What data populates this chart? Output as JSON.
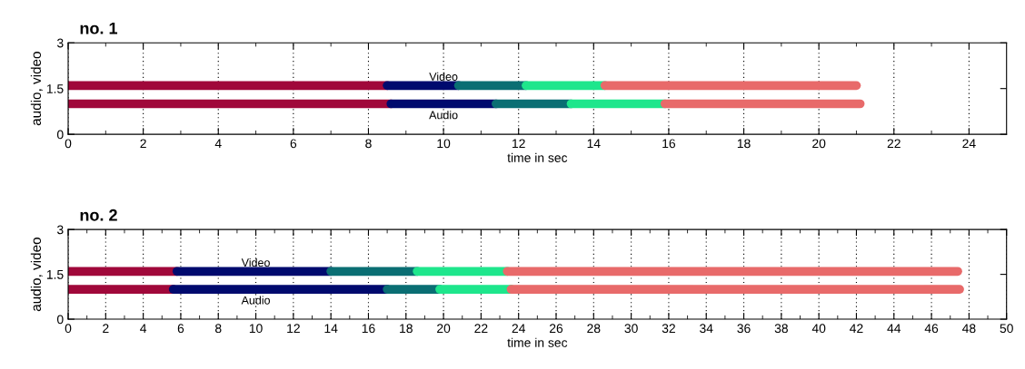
{
  "chart_data": [
    {
      "type": "line",
      "title": "no. 1",
      "xlabel": "time in sec",
      "ylabel": "audio, video",
      "xlim": [
        0,
        25
      ],
      "ylim": [
        0,
        3
      ],
      "xticks": [
        0,
        2,
        4,
        6,
        8,
        10,
        12,
        14,
        16,
        18,
        20,
        22,
        24,
        {
          "value": 1,
          "label": null
        },
        {
          "value": 3,
          "label": null
        },
        {
          "value": 5,
          "label": null
        },
        {
          "value": 7,
          "label": null
        },
        {
          "value": 9,
          "label": null
        },
        {
          "value": 11,
          "label": null
        },
        {
          "value": 13,
          "label": null
        },
        {
          "value": 15,
          "label": null
        },
        {
          "value": 17,
          "label": null
        },
        {
          "value": 19,
          "label": null
        },
        {
          "value": 21,
          "label": null
        },
        {
          "value": 23,
          "label": null
        }
      ],
      "yticks": [
        0,
        1.5,
        3
      ],
      "grid": "x",
      "marker": "none",
      "line_style": "solid",
      "annotations": [
        "Video",
        "Audio"
      ],
      "series": [
        {
          "color": "#a0083a",
          "x": [
            0,
            8.5
          ],
          "values": [
            1.6,
            1.6
          ]
        },
        {
          "color": "#000a6e",
          "x": [
            8.5,
            10.4
          ],
          "values": [
            1.6,
            1.6
          ]
        },
        {
          "color": "#0a6e73",
          "x": [
            10.4,
            12.2
          ],
          "values": [
            1.6,
            1.6
          ]
        },
        {
          "color": "#1ee68c",
          "x": [
            12.2,
            14.3
          ],
          "values": [
            1.6,
            1.6
          ]
        },
        {
          "color": "#e86a6a",
          "x": [
            14.3,
            21.0
          ],
          "values": [
            1.6,
            1.6
          ]
        },
        {
          "color": "#a0083a",
          "x": [
            0,
            8.6
          ],
          "values": [
            1.0,
            1.0
          ]
        },
        {
          "color": "#000a6e",
          "x": [
            8.6,
            11.4
          ],
          "values": [
            1.0,
            1.0
          ]
        },
        {
          "color": "#0a6e73",
          "x": [
            11.4,
            13.4
          ],
          "values": [
            1.0,
            1.0
          ]
        },
        {
          "color": "#1ee68c",
          "x": [
            13.4,
            15.9
          ],
          "values": [
            1.0,
            1.0
          ]
        },
        {
          "color": "#e86a6a",
          "x": [
            15.9,
            21.1
          ],
          "values": [
            1.0,
            1.0
          ]
        }
      ]
    },
    {
      "type": "line",
      "title": "no. 2",
      "xlabel": "time in sec",
      "ylabel": "audio, video",
      "xlim": [
        0,
        50
      ],
      "ylim": [
        0,
        3
      ],
      "xticks": [
        0,
        2,
        4,
        6,
        8,
        10,
        12,
        14,
        16,
        18,
        20,
        22,
        24,
        26,
        28,
        30,
        32,
        34,
        36,
        38,
        40,
        42,
        44,
        46,
        48,
        50,
        {
          "value": 1,
          "label": null
        },
        {
          "value": 3,
          "label": null
        },
        {
          "value": 5,
          "label": null
        },
        {
          "value": 7,
          "label": null
        },
        {
          "value": 9,
          "label": null
        },
        {
          "value": 11,
          "label": null
        },
        {
          "value": 13,
          "label": null
        },
        {
          "value": 15,
          "label": null
        },
        {
          "value": 17,
          "label": null
        },
        {
          "value": 19,
          "label": null
        },
        {
          "value": 21,
          "label": null
        },
        {
          "value": 23,
          "label": null
        },
        {
          "value": 25,
          "label": null
        },
        {
          "value": 27,
          "label": null
        },
        {
          "value": 29,
          "label": null
        },
        {
          "value": 31,
          "label": null
        },
        {
          "value": 33,
          "label": null
        },
        {
          "value": 35,
          "label": null
        },
        {
          "value": 37,
          "label": null
        },
        {
          "value": 39,
          "label": null
        },
        {
          "value": 41,
          "label": null
        },
        {
          "value": 43,
          "label": null
        },
        {
          "value": 45,
          "label": null
        },
        {
          "value": 47,
          "label": null
        },
        {
          "value": 49,
          "label": null
        }
      ],
      "yticks": [
        0,
        1.5,
        3
      ],
      "grid": "x",
      "marker": "none",
      "line_style": "solid",
      "annotations": [
        "Video",
        "Audio"
      ],
      "series": [
        {
          "color": "#a0083a",
          "x": [
            0,
            5.8
          ],
          "values": [
            1.6,
            1.6
          ]
        },
        {
          "color": "#000a6e",
          "x": [
            5.8,
            14.0
          ],
          "values": [
            1.6,
            1.6
          ]
        },
        {
          "color": "#0a6e73",
          "x": [
            14.0,
            18.6
          ],
          "values": [
            1.6,
            1.6
          ]
        },
        {
          "color": "#1ee68c",
          "x": [
            18.6,
            23.4
          ],
          "values": [
            1.6,
            1.6
          ]
        },
        {
          "color": "#e86a6a",
          "x": [
            23.4,
            47.4
          ],
          "values": [
            1.6,
            1.6
          ]
        },
        {
          "color": "#a0083a",
          "x": [
            0,
            5.6
          ],
          "values": [
            1.0,
            1.0
          ]
        },
        {
          "color": "#000a6e",
          "x": [
            5.6,
            17.0
          ],
          "values": [
            1.0,
            1.0
          ]
        },
        {
          "color": "#0a6e73",
          "x": [
            17.0,
            19.8
          ],
          "values": [
            1.0,
            1.0
          ]
        },
        {
          "color": "#1ee68c",
          "x": [
            19.8,
            23.6
          ],
          "values": [
            1.0,
            1.0
          ]
        },
        {
          "color": "#e86a6a",
          "x": [
            23.6,
            47.5
          ],
          "values": [
            1.0,
            1.0
          ]
        }
      ]
    }
  ]
}
